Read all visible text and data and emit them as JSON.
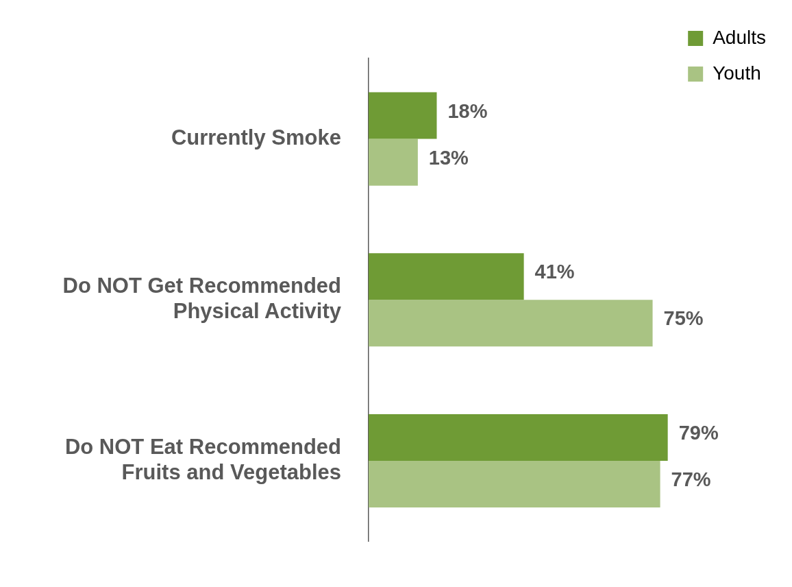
{
  "chart_data": {
    "type": "bar",
    "orientation": "horizontal",
    "categories": [
      "Currently Smoke",
      "Do NOT Get Recommended Physical Activity",
      "Do NOT Eat Recommended Fruits and Vegetables"
    ],
    "series": [
      {
        "name": "Adults",
        "color": "#6f9b35",
        "values": [
          18,
          41,
          79
        ],
        "value_labels": [
          "18%",
          "41%",
          "79%"
        ]
      },
      {
        "name": "Youth",
        "color": "#a9c383",
        "values": [
          13,
          75,
          77
        ],
        "value_labels": [
          "13%",
          "75%",
          "77%"
        ]
      }
    ],
    "legend": "top right",
    "grid": false
  }
}
